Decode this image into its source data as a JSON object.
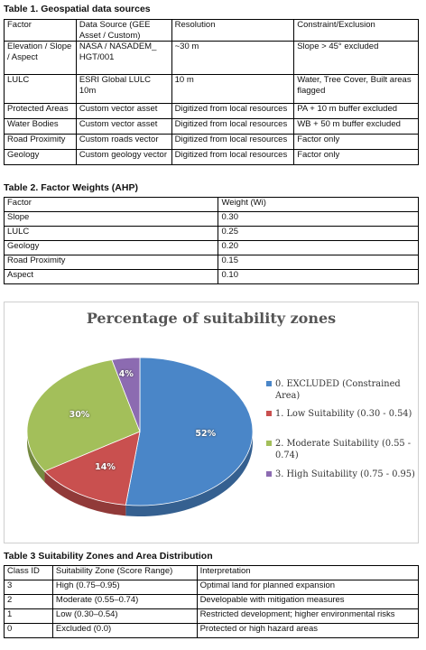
{
  "table1": {
    "caption": "Table 1. Geospatial data sources",
    "header": [
      "Factor",
      "Data Source (GEE Asset / Custom)",
      "Resolution",
      "Constraint/Exclusion"
    ],
    "rows": [
      [
        "Elevation / Slope / Aspect",
        "NASA / NASADEM_ HGT/001",
        "~30 m",
        "Slope > 45° excluded"
      ],
      [
        "LULC",
        "ESRI Global LULC 10m",
        "10 m",
        "Water, Tree Cover, Built areas flagged"
      ],
      [
        "Protected Areas",
        "Custom vector asset",
        "Digitized from local resources",
        "PA + 10 m buffer excluded"
      ],
      [
        "Water Bodies",
        "Custom vector asset",
        "Digitized from local resources",
        "WB + 50 m buffer excluded"
      ],
      [
        "Road Proximity",
        "Custom roads vector",
        "Digitized from local resources",
        "Factor only"
      ],
      [
        "Geology",
        "Custom geology vector",
        "Digitized from local resources",
        "Factor only"
      ]
    ]
  },
  "table2": {
    "caption": "Table 2. Factor Weights (AHP)",
    "header": [
      "Factor",
      "Weight (Wi)"
    ],
    "rows": [
      [
        "Slope",
        "0.30"
      ],
      [
        "LULC",
        "0.25"
      ],
      [
        "Geology",
        "0.20"
      ],
      [
        "Road Proximity",
        "0.15"
      ],
      [
        "Aspect",
        "0.10"
      ]
    ]
  },
  "chart_data": {
    "type": "pie",
    "title": "Percentage of suitability zones",
    "categories": [
      "0. EXCLUDED (Constrained Area)",
      "1. Low Suitability (0.30 - 0.54)",
      "2. Moderate Suitability (0.55 - 0.74)",
      "3. High Suitability (0.75 - 0.95)"
    ],
    "values": [
      52,
      14,
      30,
      4
    ],
    "labels": [
      "52%",
      "14%",
      "30%",
      "4%"
    ],
    "colors": [
      "#4a86c8",
      "#c9504f",
      "#a3bf5a",
      "#8c6bb1"
    ],
    "legend_position": "right",
    "style": "3d"
  },
  "table3": {
    "caption": "Table 3 Suitability Zones and Area Distribution",
    "header": [
      "Class ID",
      "Suitability Zone (Score Range)",
      "Interpretation"
    ],
    "rows": [
      [
        "3",
        "High (0.75–0.95)",
        "Optimal land for planned expansion"
      ],
      [
        "2",
        "Moderate (0.55–0.74)",
        "Developable with mitigation measures"
      ],
      [
        "1",
        "Low (0.30–0.54)",
        "Restricted development; higher environmental risks"
      ],
      [
        "0",
        "Excluded (0.0)",
        "Protected or high hazard areas"
      ]
    ]
  }
}
